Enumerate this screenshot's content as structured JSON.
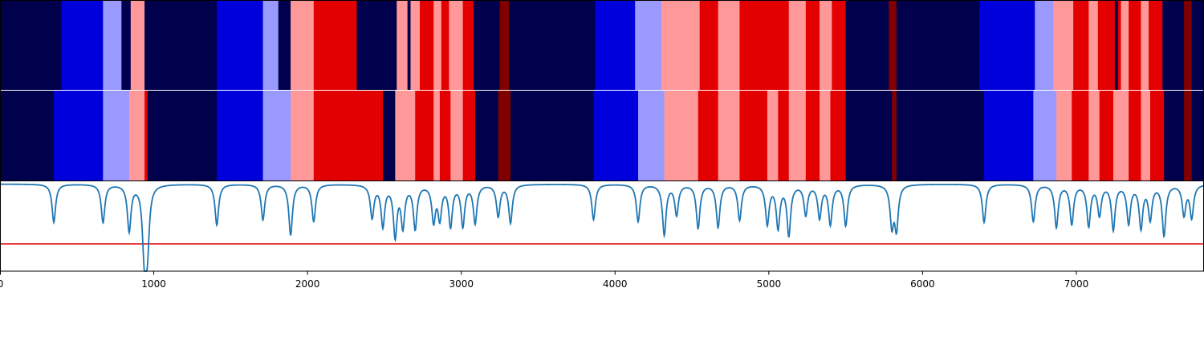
{
  "chart_data": [
    {
      "type": "heatmap",
      "title": "",
      "xlabel": "",
      "ylabel": "",
      "xlim": [
        0,
        7830
      ],
      "palette": {
        "navy": "#00004c",
        "blue": "#0000dc",
        "lightblue": "#9999ff",
        "pink": "#ff9999",
        "red": "#e30000",
        "darkred": "#800000"
      },
      "segments": [
        {
          "start": 0,
          "end": 400,
          "color": "navy"
        },
        {
          "start": 400,
          "end": 670,
          "color": "blue"
        },
        {
          "start": 670,
          "end": 790,
          "color": "lightblue"
        },
        {
          "start": 790,
          "end": 850,
          "color": "navy"
        },
        {
          "start": 850,
          "end": 940,
          "color": "pink"
        },
        {
          "start": 940,
          "end": 1410,
          "color": "navy"
        },
        {
          "start": 1410,
          "end": 1710,
          "color": "blue"
        },
        {
          "start": 1710,
          "end": 1810,
          "color": "lightblue"
        },
        {
          "start": 1810,
          "end": 1890,
          "color": "navy"
        },
        {
          "start": 1890,
          "end": 2040,
          "color": "pink"
        },
        {
          "start": 2040,
          "end": 2320,
          "color": "red"
        },
        {
          "start": 2320,
          "end": 2580,
          "color": "navy"
        },
        {
          "start": 2580,
          "end": 2650,
          "color": "pink"
        },
        {
          "start": 2650,
          "end": 2670,
          "color": "navy"
        },
        {
          "start": 2670,
          "end": 2730,
          "color": "pink"
        },
        {
          "start": 2730,
          "end": 2820,
          "color": "red"
        },
        {
          "start": 2820,
          "end": 2870,
          "color": "pink"
        },
        {
          "start": 2870,
          "end": 2920,
          "color": "red"
        },
        {
          "start": 2920,
          "end": 3010,
          "color": "pink"
        },
        {
          "start": 3010,
          "end": 3080,
          "color": "red"
        },
        {
          "start": 3080,
          "end": 3250,
          "color": "navy"
        },
        {
          "start": 3250,
          "end": 3310,
          "color": "darkred"
        },
        {
          "start": 3310,
          "end": 3870,
          "color": "navy"
        },
        {
          "start": 3870,
          "end": 4130,
          "color": "blue"
        },
        {
          "start": 4130,
          "end": 4300,
          "color": "lightblue"
        },
        {
          "start": 4300,
          "end": 4550,
          "color": "pink"
        },
        {
          "start": 4550,
          "end": 4670,
          "color": "red"
        },
        {
          "start": 4670,
          "end": 4810,
          "color": "pink"
        },
        {
          "start": 4810,
          "end": 5130,
          "color": "red"
        },
        {
          "start": 5130,
          "end": 5240,
          "color": "pink"
        },
        {
          "start": 5240,
          "end": 5330,
          "color": "red"
        },
        {
          "start": 5330,
          "end": 5410,
          "color": "pink"
        },
        {
          "start": 5410,
          "end": 5500,
          "color": "red"
        },
        {
          "start": 5500,
          "end": 5780,
          "color": "navy"
        },
        {
          "start": 5780,
          "end": 5830,
          "color": "darkred"
        },
        {
          "start": 5830,
          "end": 6370,
          "color": "navy"
        },
        {
          "start": 6370,
          "end": 6730,
          "color": "blue"
        },
        {
          "start": 6730,
          "end": 6850,
          "color": "lightblue"
        },
        {
          "start": 6850,
          "end": 6980,
          "color": "pink"
        },
        {
          "start": 6980,
          "end": 7080,
          "color": "red"
        },
        {
          "start": 7080,
          "end": 7140,
          "color": "pink"
        },
        {
          "start": 7140,
          "end": 7250,
          "color": "red"
        },
        {
          "start": 7250,
          "end": 7270,
          "color": "navy"
        },
        {
          "start": 7270,
          "end": 7290,
          "color": "red"
        },
        {
          "start": 7290,
          "end": 7340,
          "color": "pink"
        },
        {
          "start": 7340,
          "end": 7420,
          "color": "red"
        },
        {
          "start": 7420,
          "end": 7470,
          "color": "pink"
        },
        {
          "start": 7470,
          "end": 7560,
          "color": "red"
        },
        {
          "start": 7560,
          "end": 7700,
          "color": "navy"
        },
        {
          "start": 7700,
          "end": 7750,
          "color": "darkred"
        },
        {
          "start": 7750,
          "end": 7830,
          "color": "navy"
        }
      ]
    },
    {
      "type": "heatmap",
      "title": "",
      "xlabel": "",
      "ylabel": "",
      "xlim": [
        0,
        7830
      ],
      "segments": [
        {
          "start": 0,
          "end": 350,
          "color": "navy"
        },
        {
          "start": 350,
          "end": 670,
          "color": "blue"
        },
        {
          "start": 670,
          "end": 840,
          "color": "lightblue"
        },
        {
          "start": 840,
          "end": 940,
          "color": "pink"
        },
        {
          "start": 940,
          "end": 960,
          "color": "red"
        },
        {
          "start": 960,
          "end": 1410,
          "color": "navy"
        },
        {
          "start": 1410,
          "end": 1710,
          "color": "blue"
        },
        {
          "start": 1710,
          "end": 1890,
          "color": "lightblue"
        },
        {
          "start": 1890,
          "end": 2040,
          "color": "pink"
        },
        {
          "start": 2040,
          "end": 2490,
          "color": "red"
        },
        {
          "start": 2490,
          "end": 2570,
          "color": "navy"
        },
        {
          "start": 2570,
          "end": 2700,
          "color": "pink"
        },
        {
          "start": 2700,
          "end": 2820,
          "color": "red"
        },
        {
          "start": 2820,
          "end": 2860,
          "color": "pink"
        },
        {
          "start": 2860,
          "end": 2930,
          "color": "red"
        },
        {
          "start": 2930,
          "end": 3010,
          "color": "pink"
        },
        {
          "start": 3010,
          "end": 3090,
          "color": "red"
        },
        {
          "start": 3090,
          "end": 3240,
          "color": "navy"
        },
        {
          "start": 3240,
          "end": 3320,
          "color": "darkred"
        },
        {
          "start": 3320,
          "end": 3860,
          "color": "navy"
        },
        {
          "start": 3860,
          "end": 4150,
          "color": "blue"
        },
        {
          "start": 4150,
          "end": 4320,
          "color": "lightblue"
        },
        {
          "start": 4320,
          "end": 4540,
          "color": "pink"
        },
        {
          "start": 4540,
          "end": 4670,
          "color": "red"
        },
        {
          "start": 4670,
          "end": 4810,
          "color": "pink"
        },
        {
          "start": 4810,
          "end": 4990,
          "color": "red"
        },
        {
          "start": 4990,
          "end": 5060,
          "color": "pink"
        },
        {
          "start": 5060,
          "end": 5130,
          "color": "red"
        },
        {
          "start": 5130,
          "end": 5240,
          "color": "pink"
        },
        {
          "start": 5240,
          "end": 5330,
          "color": "red"
        },
        {
          "start": 5330,
          "end": 5400,
          "color": "pink"
        },
        {
          "start": 5400,
          "end": 5500,
          "color": "red"
        },
        {
          "start": 5500,
          "end": 5800,
          "color": "navy"
        },
        {
          "start": 5800,
          "end": 5830,
          "color": "darkred"
        },
        {
          "start": 5830,
          "end": 6400,
          "color": "navy"
        },
        {
          "start": 6400,
          "end": 6720,
          "color": "blue"
        },
        {
          "start": 6720,
          "end": 6870,
          "color": "lightblue"
        },
        {
          "start": 6870,
          "end": 6970,
          "color": "pink"
        },
        {
          "start": 6970,
          "end": 7080,
          "color": "red"
        },
        {
          "start": 7080,
          "end": 7150,
          "color": "pink"
        },
        {
          "start": 7150,
          "end": 7240,
          "color": "red"
        },
        {
          "start": 7240,
          "end": 7340,
          "color": "pink"
        },
        {
          "start": 7340,
          "end": 7420,
          "color": "red"
        },
        {
          "start": 7420,
          "end": 7480,
          "color": "pink"
        },
        {
          "start": 7480,
          "end": 7570,
          "color": "red"
        },
        {
          "start": 7570,
          "end": 7700,
          "color": "navy"
        },
        {
          "start": 7700,
          "end": 7750,
          "color": "darkred"
        },
        {
          "start": 7750,
          "end": 7830,
          "color": "navy"
        }
      ]
    },
    {
      "type": "line",
      "title": "",
      "xlabel": "",
      "ylabel": "",
      "xlim": [
        0,
        7830
      ],
      "ylim": [
        -0.6,
        1.05
      ],
      "xticks": [
        0,
        1000,
        2000,
        3000,
        4000,
        5000,
        6000,
        7000
      ],
      "xtick_labels": [
        "0",
        "1000",
        "2000",
        "3000",
        "4000",
        "5000",
        "6000",
        "7000"
      ],
      "line_color": "#1f77b4",
      "threshold": {
        "y": -0.1,
        "color": "#e00000"
      },
      "baseline": 1.0,
      "dips": [
        {
          "x": 350,
          "depth": 0.7
        },
        {
          "x": 670,
          "depth": 0.7
        },
        {
          "x": 840,
          "depth": 0.85
        },
        {
          "x": 935,
          "depth": 0.6
        },
        {
          "x": 945,
          "depth": 0.95
        },
        {
          "x": 960,
          "depth": 0.85
        },
        {
          "x": 1410,
          "depth": 0.75
        },
        {
          "x": 1710,
          "depth": 0.65
        },
        {
          "x": 1890,
          "depth": 0.93
        },
        {
          "x": 2040,
          "depth": 0.68
        },
        {
          "x": 2420,
          "depth": 0.6
        },
        {
          "x": 2490,
          "depth": 0.75
        },
        {
          "x": 2570,
          "depth": 0.93
        },
        {
          "x": 2620,
          "depth": 0.75
        },
        {
          "x": 2700,
          "depth": 0.8
        },
        {
          "x": 2820,
          "depth": 0.65
        },
        {
          "x": 2860,
          "depth": 0.6
        },
        {
          "x": 2930,
          "depth": 0.75
        },
        {
          "x": 3010,
          "depth": 0.75
        },
        {
          "x": 3090,
          "depth": 0.7
        },
        {
          "x": 3240,
          "depth": 0.58
        },
        {
          "x": 3320,
          "depth": 0.7
        },
        {
          "x": 3860,
          "depth": 0.65
        },
        {
          "x": 4150,
          "depth": 0.68
        },
        {
          "x": 4320,
          "depth": 0.92
        },
        {
          "x": 4400,
          "depth": 0.55
        },
        {
          "x": 4540,
          "depth": 0.8
        },
        {
          "x": 4670,
          "depth": 0.78
        },
        {
          "x": 4810,
          "depth": 0.65
        },
        {
          "x": 4990,
          "depth": 0.72
        },
        {
          "x": 5060,
          "depth": 0.78
        },
        {
          "x": 5130,
          "depth": 0.92
        },
        {
          "x": 5240,
          "depth": 0.55
        },
        {
          "x": 5330,
          "depth": 0.6
        },
        {
          "x": 5400,
          "depth": 0.72
        },
        {
          "x": 5500,
          "depth": 0.75
        },
        {
          "x": 5800,
          "depth": 0.73
        },
        {
          "x": 5830,
          "depth": 0.78
        },
        {
          "x": 6400,
          "depth": 0.7
        },
        {
          "x": 6720,
          "depth": 0.68
        },
        {
          "x": 6870,
          "depth": 0.78
        },
        {
          "x": 6970,
          "depth": 0.72
        },
        {
          "x": 7080,
          "depth": 0.75
        },
        {
          "x": 7150,
          "depth": 0.55
        },
        {
          "x": 7240,
          "depth": 0.82
        },
        {
          "x": 7340,
          "depth": 0.7
        },
        {
          "x": 7420,
          "depth": 0.78
        },
        {
          "x": 7480,
          "depth": 0.62
        },
        {
          "x": 7570,
          "depth": 0.93
        },
        {
          "x": 7700,
          "depth": 0.55
        },
        {
          "x": 7750,
          "depth": 0.6
        }
      ]
    }
  ]
}
